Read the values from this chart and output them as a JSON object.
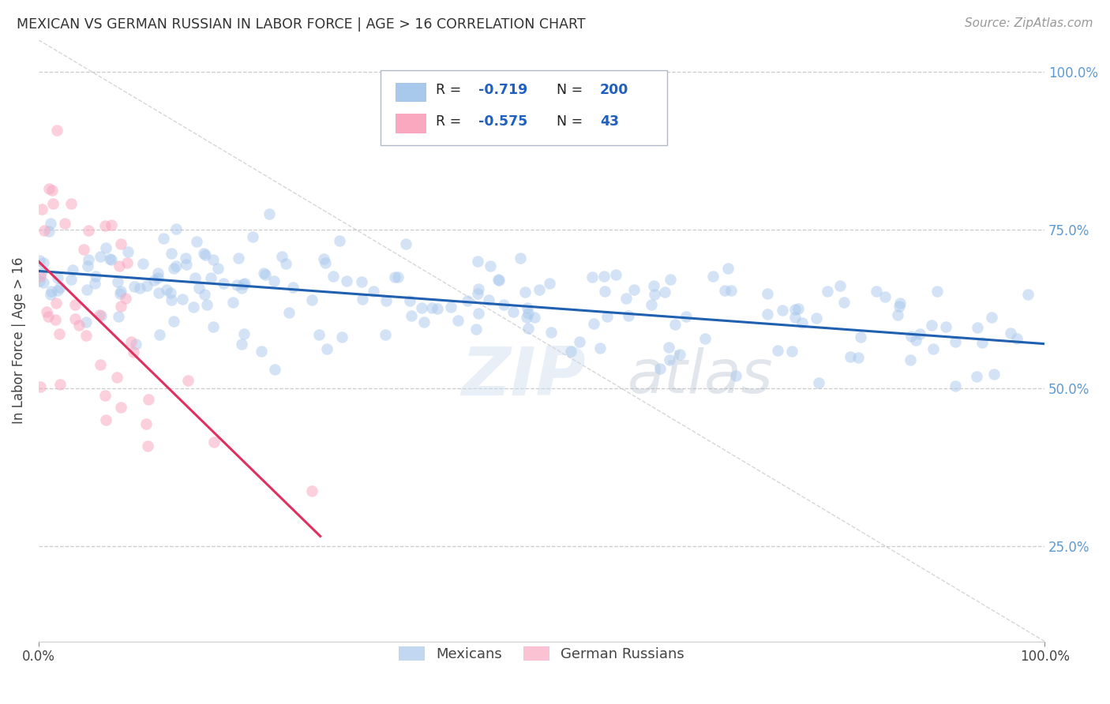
{
  "title": "MEXICAN VS GERMAN RUSSIAN IN LABOR FORCE | AGE > 16 CORRELATION CHART",
  "source_text": "Source: ZipAtlas.com",
  "ylabel": "In Labor Force | Age > 16",
  "xlim": [
    0.0,
    1.0
  ],
  "ylim": [
    0.1,
    1.05
  ],
  "yticks": [
    0.25,
    0.5,
    0.75,
    1.0
  ],
  "ytick_labels": [
    "25.0%",
    "50.0%",
    "75.0%",
    "100.0%"
  ],
  "xticks": [
    0.0,
    1.0
  ],
  "xtick_labels": [
    "0.0%",
    "100.0%"
  ],
  "legend_entries": [
    {
      "color": "#a8c8ec",
      "label": "Mexicans",
      "R": -0.719,
      "N": 200
    },
    {
      "color": "#f9a8c0",
      "label": "German Russians",
      "R": -0.575,
      "N": 43
    }
  ],
  "blue_scatter_color": "#a8c8ec",
  "pink_scatter_color": "#f9a8c0",
  "blue_line_color": "#2060b0",
  "pink_line_color": "#e03060",
  "watermark_zip": "ZIP",
  "watermark_atlas": "atlas",
  "background_color": "#ffffff",
  "grid_color": "#cccccc",
  "blue_N": 200,
  "pink_N": 43,
  "blue_R": -0.719,
  "pink_R": -0.575,
  "blue_intercept": 0.685,
  "blue_slope": -0.115,
  "pink_intercept": 0.7,
  "pink_slope": -1.55,
  "pink_line_end_x": 0.28,
  "diag_line_color": "#bbbbbb"
}
